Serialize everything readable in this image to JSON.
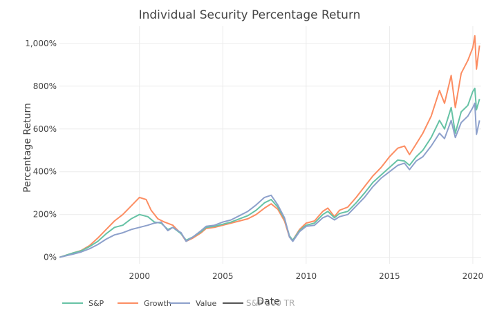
{
  "chart_data": {
    "type": "line",
    "title": "Individual Security Percentage Return",
    "xlabel": "Date",
    "ylabel": "Percentage Return",
    "xlim": [
      1995.2,
      2020.5
    ],
    "ylim": [
      -30,
      1080
    ],
    "xticks": [
      2000,
      2005,
      2010,
      2015,
      2020
    ],
    "xtick_labels": [
      "2000",
      "2005",
      "2010",
      "2015",
      "2020"
    ],
    "yticks": [
      0,
      200,
      400,
      600,
      800,
      1000
    ],
    "ytick_labels": [
      "0%",
      "200%",
      "400%",
      "600%",
      "800%",
      "1,000%"
    ],
    "grid": true,
    "legend_position": "bottom",
    "legend_extra": "S&P 500 TR",
    "series": [
      {
        "name": "S&P",
        "color": "#66c2a5",
        "points": [
          [
            1995.2,
            0
          ],
          [
            1996.0,
            20
          ],
          [
            1996.5,
            30
          ],
          [
            1997.0,
            50
          ],
          [
            1997.5,
            75
          ],
          [
            1998.0,
            110
          ],
          [
            1998.5,
            140
          ],
          [
            1999.0,
            150
          ],
          [
            1999.5,
            180
          ],
          [
            2000.0,
            200
          ],
          [
            2000.5,
            190
          ],
          [
            2000.9,
            165
          ],
          [
            2001.3,
            160
          ],
          [
            2001.7,
            130
          ],
          [
            2002.0,
            140
          ],
          [
            2002.5,
            110
          ],
          [
            2002.8,
            80
          ],
          [
            2003.2,
            95
          ],
          [
            2003.7,
            120
          ],
          [
            2004.0,
            140
          ],
          [
            2004.5,
            145
          ],
          [
            2005.0,
            155
          ],
          [
            2005.5,
            165
          ],
          [
            2006.0,
            180
          ],
          [
            2006.5,
            195
          ],
          [
            2007.0,
            220
          ],
          [
            2007.5,
            255
          ],
          [
            2007.9,
            270
          ],
          [
            2008.3,
            235
          ],
          [
            2008.7,
            180
          ],
          [
            2009.0,
            100
          ],
          [
            2009.2,
            80
          ],
          [
            2009.6,
            125
          ],
          [
            2010.0,
            150
          ],
          [
            2010.5,
            160
          ],
          [
            2011.0,
            200
          ],
          [
            2011.3,
            215
          ],
          [
            2011.7,
            185
          ],
          [
            2012.0,
            205
          ],
          [
            2012.5,
            215
          ],
          [
            2013.0,
            255
          ],
          [
            2013.5,
            300
          ],
          [
            2014.0,
            350
          ],
          [
            2014.5,
            385
          ],
          [
            2015.0,
            420
          ],
          [
            2015.5,
            455
          ],
          [
            2015.9,
            450
          ],
          [
            2016.2,
            430
          ],
          [
            2016.6,
            470
          ],
          [
            2017.0,
            500
          ],
          [
            2017.5,
            560
          ],
          [
            2018.0,
            640
          ],
          [
            2018.3,
            600
          ],
          [
            2018.7,
            700
          ],
          [
            2018.95,
            580
          ],
          [
            2019.3,
            680
          ],
          [
            2019.7,
            710
          ],
          [
            2020.0,
            775
          ],
          [
            2020.12,
            790
          ],
          [
            2020.22,
            690
          ],
          [
            2020.4,
            740
          ]
        ]
      },
      {
        "name": "Growth",
        "color": "#fc8d62",
        "points": [
          [
            1995.2,
            0
          ],
          [
            1996.0,
            20
          ],
          [
            1996.5,
            32
          ],
          [
            1997.0,
            55
          ],
          [
            1997.5,
            90
          ],
          [
            1998.0,
            130
          ],
          [
            1998.5,
            170
          ],
          [
            1999.0,
            200
          ],
          [
            1999.5,
            240
          ],
          [
            2000.0,
            280
          ],
          [
            2000.4,
            270
          ],
          [
            2000.7,
            220
          ],
          [
            2001.1,
            180
          ],
          [
            2001.5,
            165
          ],
          [
            2002.0,
            150
          ],
          [
            2002.5,
            110
          ],
          [
            2002.8,
            75
          ],
          [
            2003.2,
            90
          ],
          [
            2003.7,
            115
          ],
          [
            2004.0,
            135
          ],
          [
            2004.5,
            140
          ],
          [
            2005.0,
            150
          ],
          [
            2005.5,
            160
          ],
          [
            2006.0,
            170
          ],
          [
            2006.5,
            180
          ],
          [
            2007.0,
            200
          ],
          [
            2007.5,
            230
          ],
          [
            2007.9,
            250
          ],
          [
            2008.3,
            225
          ],
          [
            2008.7,
            170
          ],
          [
            2009.0,
            95
          ],
          [
            2009.2,
            80
          ],
          [
            2009.6,
            130
          ],
          [
            2010.0,
            160
          ],
          [
            2010.5,
            170
          ],
          [
            2011.0,
            215
          ],
          [
            2011.3,
            230
          ],
          [
            2011.7,
            190
          ],
          [
            2012.0,
            220
          ],
          [
            2012.5,
            235
          ],
          [
            2013.0,
            280
          ],
          [
            2013.5,
            330
          ],
          [
            2014.0,
            380
          ],
          [
            2014.5,
            420
          ],
          [
            2015.0,
            470
          ],
          [
            2015.5,
            510
          ],
          [
            2015.9,
            520
          ],
          [
            2016.2,
            480
          ],
          [
            2016.6,
            530
          ],
          [
            2017.0,
            580
          ],
          [
            2017.5,
            660
          ],
          [
            2018.0,
            780
          ],
          [
            2018.3,
            720
          ],
          [
            2018.7,
            850
          ],
          [
            2018.95,
            700
          ],
          [
            2019.3,
            860
          ],
          [
            2019.7,
            920
          ],
          [
            2020.0,
            980
          ],
          [
            2020.12,
            1035
          ],
          [
            2020.22,
            880
          ],
          [
            2020.4,
            990
          ]
        ]
      },
      {
        "name": "Value",
        "color": "#8da0cb",
        "points": [
          [
            1995.2,
            0
          ],
          [
            1996.0,
            15
          ],
          [
            1996.5,
            25
          ],
          [
            1997.0,
            40
          ],
          [
            1997.5,
            60
          ],
          [
            1998.0,
            85
          ],
          [
            1998.5,
            105
          ],
          [
            1999.0,
            115
          ],
          [
            1999.5,
            130
          ],
          [
            2000.0,
            140
          ],
          [
            2000.5,
            150
          ],
          [
            2000.9,
            160
          ],
          [
            2001.3,
            165
          ],
          [
            2001.7,
            125
          ],
          [
            2002.0,
            140
          ],
          [
            2002.5,
            115
          ],
          [
            2002.8,
            75
          ],
          [
            2003.2,
            95
          ],
          [
            2003.7,
            125
          ],
          [
            2004.0,
            145
          ],
          [
            2004.5,
            150
          ],
          [
            2005.0,
            165
          ],
          [
            2005.5,
            175
          ],
          [
            2006.0,
            195
          ],
          [
            2006.5,
            215
          ],
          [
            2007.0,
            245
          ],
          [
            2007.5,
            280
          ],
          [
            2007.9,
            290
          ],
          [
            2008.3,
            245
          ],
          [
            2008.7,
            185
          ],
          [
            2009.0,
            95
          ],
          [
            2009.2,
            75
          ],
          [
            2009.6,
            120
          ],
          [
            2010.0,
            145
          ],
          [
            2010.5,
            150
          ],
          [
            2011.0,
            185
          ],
          [
            2011.3,
            195
          ],
          [
            2011.7,
            175
          ],
          [
            2012.0,
            190
          ],
          [
            2012.5,
            200
          ],
          [
            2013.0,
            240
          ],
          [
            2013.5,
            280
          ],
          [
            2014.0,
            330
          ],
          [
            2014.5,
            370
          ],
          [
            2015.0,
            400
          ],
          [
            2015.5,
            430
          ],
          [
            2015.9,
            440
          ],
          [
            2016.2,
            410
          ],
          [
            2016.6,
            450
          ],
          [
            2017.0,
            470
          ],
          [
            2017.5,
            520
          ],
          [
            2018.0,
            580
          ],
          [
            2018.3,
            555
          ],
          [
            2018.7,
            640
          ],
          [
            2018.95,
            560
          ],
          [
            2019.3,
            630
          ],
          [
            2019.7,
            660
          ],
          [
            2020.0,
            700
          ],
          [
            2020.12,
            720
          ],
          [
            2020.22,
            575
          ],
          [
            2020.4,
            640
          ]
        ]
      }
    ]
  }
}
